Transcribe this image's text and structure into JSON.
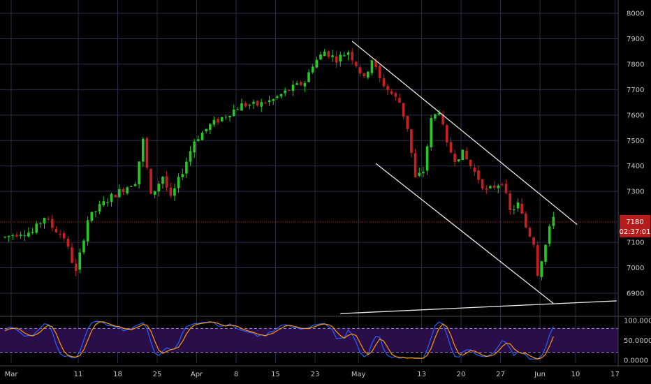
{
  "chart_data": {
    "type": "candlestick",
    "colors": {
      "background": "#000000",
      "grid": "#2a2e49",
      "up": "#26c726",
      "down": "#c82020",
      "trendline": "#e8e8e8",
      "price_line": "#c82020",
      "badge": "#b71c1c",
      "stoch_fill": "#2a0e4a",
      "stoch_k": "#2962ff",
      "stoch_d": "#ff9800",
      "stoch_band": "#9c7bd6"
    },
    "price_axis": {
      "ylim": [
        6870,
        8000
      ],
      "ticks": [
        "8000",
        "7900",
        "7800",
        "7700",
        "7600",
        "7500",
        "7400",
        "7300",
        "7100",
        "7000",
        "6900"
      ],
      "tick_values": [
        8000,
        7900,
        7800,
        7700,
        7600,
        7500,
        7400,
        7300,
        7100,
        7000,
        6900
      ]
    },
    "last_price": {
      "value": 7180,
      "label": "7180",
      "countdown": "02:37:01"
    },
    "x_axis": {
      "labels": [
        "Mar",
        "11",
        "18",
        "25",
        "Apr",
        "8",
        "15",
        "23",
        "May",
        "13",
        "20",
        "27",
        "Jun",
        "10",
        "17"
      ],
      "label_index": [
        0,
        17,
        27,
        37,
        47,
        57,
        67,
        77,
        88,
        104,
        114,
        124,
        134,
        143,
        153
      ]
    },
    "series": [
      {
        "name": "price",
        "waypoints": [
          [
            0,
            7120
          ],
          [
            4,
            7140
          ],
          [
            7,
            7140
          ],
          [
            10,
            7200
          ],
          [
            12,
            7160
          ],
          [
            15,
            7120
          ],
          [
            18,
            6980
          ],
          [
            21,
            7190
          ],
          [
            24,
            7240
          ],
          [
            27,
            7280
          ],
          [
            30,
            7310
          ],
          [
            33,
            7340
          ],
          [
            35,
            7500
          ],
          [
            37,
            7280
          ],
          [
            40,
            7360
          ],
          [
            42,
            7270
          ],
          [
            45,
            7380
          ],
          [
            48,
            7500
          ],
          [
            52,
            7560
          ],
          [
            56,
            7600
          ],
          [
            60,
            7640
          ],
          [
            64,
            7640
          ],
          [
            68,
            7660
          ],
          [
            72,
            7700
          ],
          [
            76,
            7730
          ],
          [
            78,
            7800
          ],
          [
            81,
            7850
          ],
          [
            84,
            7820
          ],
          [
            87,
            7850
          ],
          [
            89,
            7800
          ],
          [
            91,
            7740
          ],
          [
            93,
            7820
          ],
          [
            95,
            7740
          ],
          [
            97,
            7700
          ],
          [
            100,
            7650
          ],
          [
            102,
            7550
          ],
          [
            104,
            7350
          ],
          [
            106,
            7380
          ],
          [
            108,
            7580
          ],
          [
            110,
            7620
          ],
          [
            112,
            7480
          ],
          [
            114,
            7430
          ],
          [
            116,
            7450
          ],
          [
            118,
            7400
          ],
          [
            120,
            7350
          ],
          [
            122,
            7300
          ],
          [
            124,
            7320
          ],
          [
            126,
            7340
          ],
          [
            128,
            7220
          ],
          [
            130,
            7250
          ],
          [
            132,
            7160
          ],
          [
            134,
            7100
          ],
          [
            135,
            6980
          ],
          [
            137,
            7090
          ],
          [
            139,
            7210
          ]
        ]
      }
    ],
    "trendlines": [
      {
        "name": "channel-upper",
        "from": [
          88,
          7890
        ],
        "to": [
          145,
          7170
        ]
      },
      {
        "name": "channel-lower",
        "from": [
          94,
          7410
        ],
        "to": [
          139,
          6860
        ]
      },
      {
        "name": "support",
        "from": [
          85,
          6820
        ],
        "to": [
          155,
          6870
        ]
      }
    ],
    "stochastic": {
      "ylim": [
        0,
        100
      ],
      "band": [
        20,
        80
      ],
      "ticks": [
        "100.0000",
        "50.0000",
        "0.0000"
      ],
      "tick_values": [
        100,
        50,
        0
      ]
    },
    "grid": true
  }
}
